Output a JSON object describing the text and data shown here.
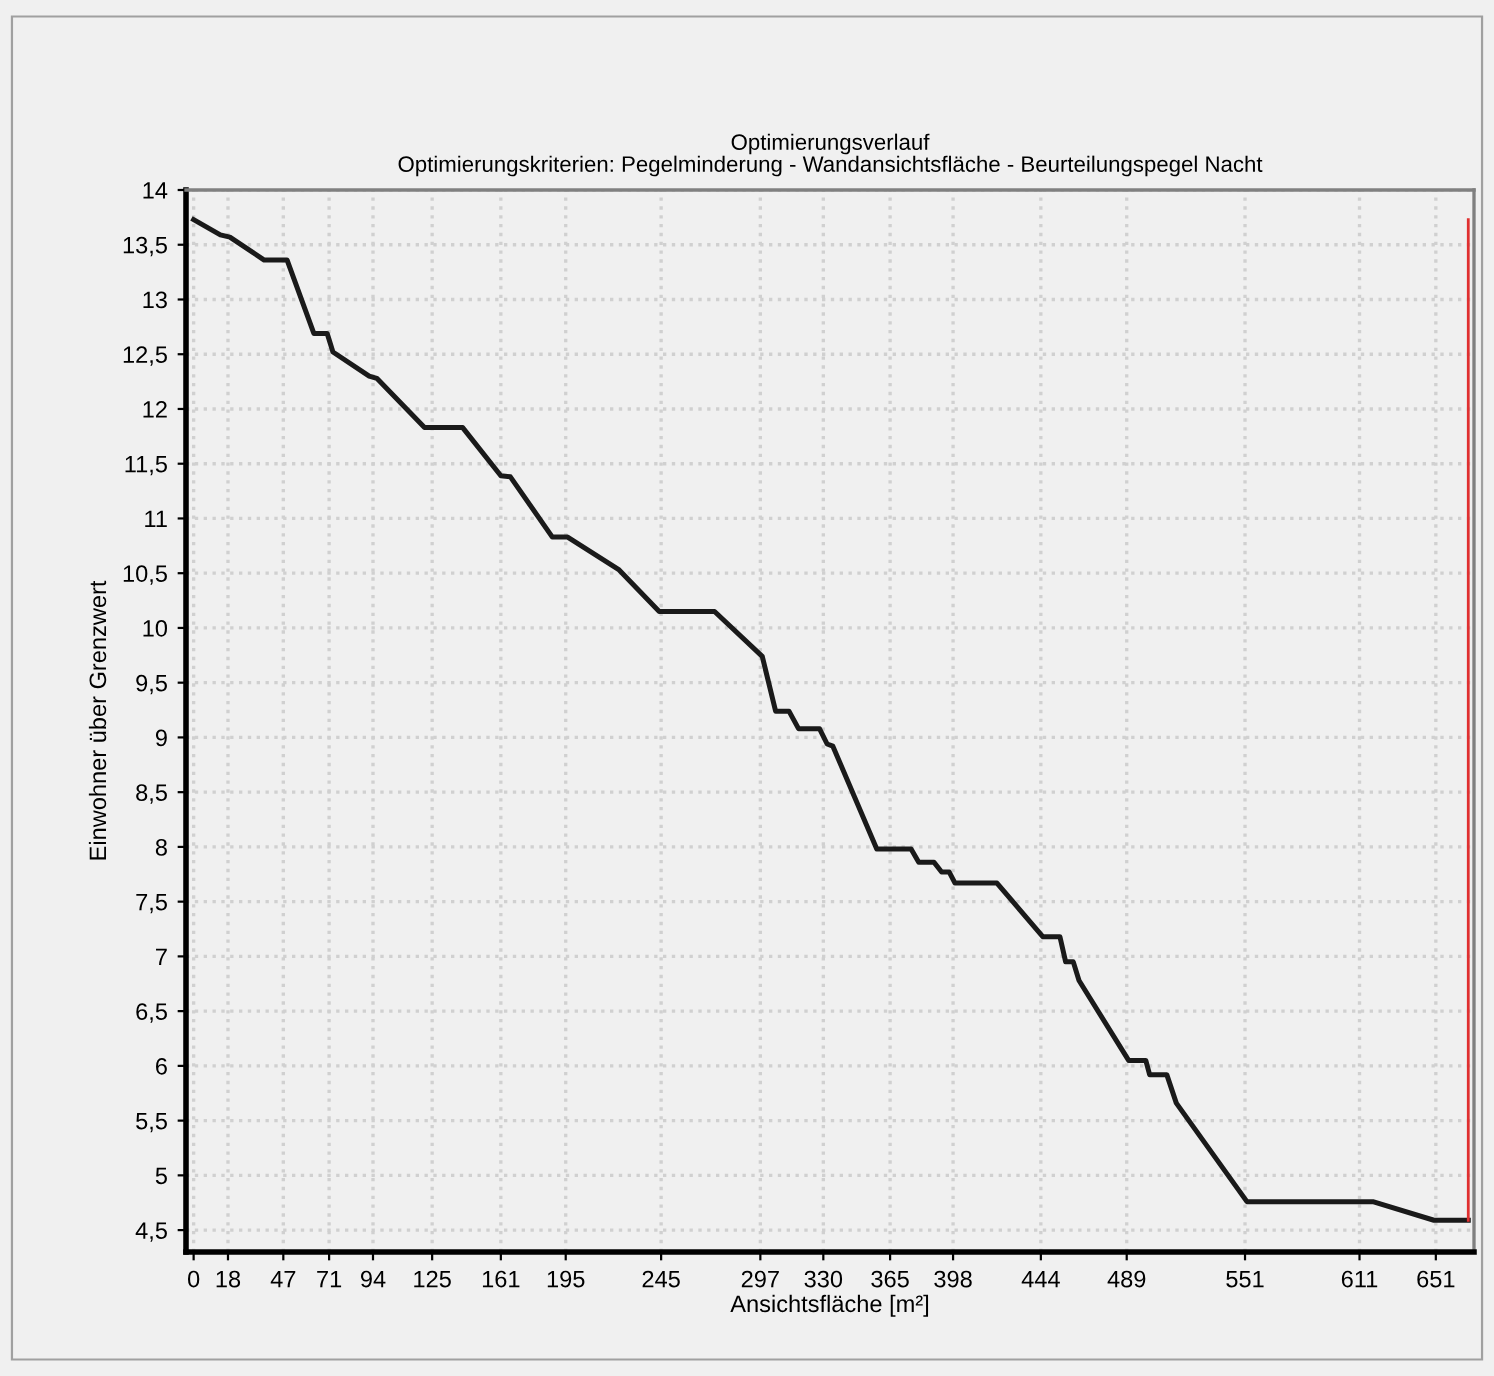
{
  "chart_data": {
    "type": "line",
    "title": "Optimierungsverlauf",
    "subtitle": "Optimierungskriterien: Pegelminderung - Wandansichtsfläche - Beurteilungspegel Nacht",
    "xlabel": "Ansichtsfläche [m²]",
    "ylabel": "Einwohner über Grenzwert",
    "series": [
      {
        "color": "#1a1a1a",
        "x": [
          0,
          14,
          19,
          37,
          49,
          63,
          70,
          73,
          92,
          96,
          121,
          141,
          161,
          166,
          188,
          196,
          223,
          244,
          273,
          298,
          305,
          312,
          317,
          328,
          332,
          335,
          358,
          376,
          380,
          388,
          392,
          396,
          399,
          421,
          445,
          454,
          457,
          461,
          464,
          490,
          499,
          501,
          510,
          515,
          552,
          618,
          650,
          668
        ],
        "values": [
          13.73,
          13.59,
          13.57,
          13.36,
          13.36,
          12.69,
          12.69,
          12.52,
          12.3,
          12.28,
          11.83,
          11.83,
          11.39,
          11.38,
          10.83,
          10.83,
          10.53,
          10.15,
          10.15,
          9.74,
          9.24,
          9.24,
          9.08,
          9.08,
          8.94,
          8.92,
          7.98,
          7.98,
          7.86,
          7.86,
          7.77,
          7.77,
          7.67,
          7.67,
          7.18,
          7.18,
          6.95,
          6.95,
          6.78,
          6.05,
          6.05,
          5.92,
          5.92,
          5.66,
          4.76,
          4.76,
          4.59,
          4.59
        ]
      },
      {
        "color": "#e03030",
        "x": [
          668,
          668
        ],
        "values": [
          4.59,
          13.73
        ]
      }
    ],
    "xlim": [
      -4,
      671
    ],
    "ylim": [
      4.3,
      14
    ],
    "xticks": [
      0,
      18,
      47,
      71,
      94,
      125,
      161,
      195,
      245,
      297,
      330,
      365,
      398,
      444,
      489,
      551,
      611,
      651
    ],
    "yticks": [
      {
        "value": 4.5,
        "label": "4,5"
      },
      5,
      {
        "value": 5.5,
        "label": "5,5"
      },
      6,
      {
        "value": 6.5,
        "label": "6,5"
      },
      7,
      {
        "value": 7.5,
        "label": "7,5"
      },
      8,
      {
        "value": 8.5,
        "label": "8,5"
      },
      9,
      {
        "value": 9.5,
        "label": "9,5"
      },
      10,
      {
        "value": 10.5,
        "label": "10,5"
      },
      11,
      {
        "value": 11.5,
        "label": "11,5"
      },
      12,
      {
        "value": 12.5,
        "label": "12,5"
      },
      13,
      {
        "value": 13.5,
        "label": "13,5"
      },
      14
    ],
    "grid": true,
    "legend": false,
    "marker": "none",
    "line_style": "solid"
  }
}
